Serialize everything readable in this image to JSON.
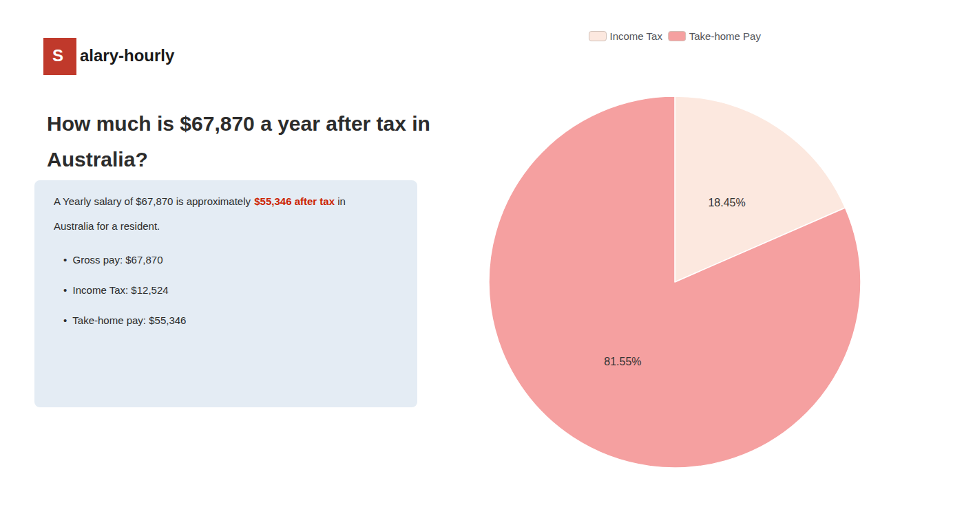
{
  "chart_data": {
    "type": "pie",
    "title": "How much is $67,870 a year after tax in\nAustralia?",
    "annotations": [
      [
        {
          "text": "S",
          "color": "#c0392b"
        },
        {
          "text": "alary-hourly"
        }
      ],
      [
        {
          "text": "A Yearly salary of $67,870 is approximately "
        },
        {
          "text": "$55,346 after tax",
          "color": "#cc2200"
        },
        {
          "text": " in"
        }
      ],
      [
        {
          "text": "Australia for a resident."
        }
      ],
      [
        {
          "text": "•  Gross pay: $67,870"
        }
      ],
      [
        {
          "text": "•  Income Tax: $12,524"
        }
      ],
      [
        {
          "text": "•  Take-home pay: $55,346"
        }
      ]
    ],
    "categories": [
      "Income Tax",
      "Take-home Pay"
    ],
    "values": [
      18.45,
      81.55
    ],
    "value_labels": [
      "18.45%",
      "81.55%"
    ],
    "data_labels": true,
    "colors": [
      "#fce8df",
      "#f5a0a0"
    ],
    "legend": "top"
  }
}
